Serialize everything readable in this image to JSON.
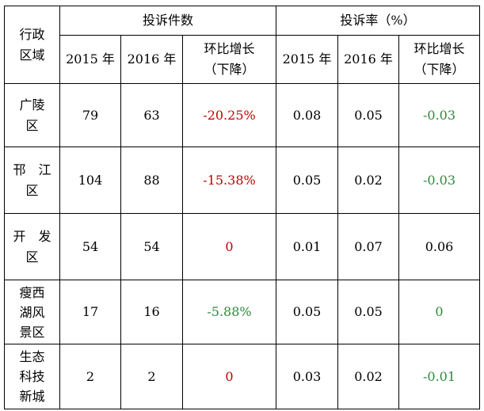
{
  "header": {
    "region_lines": [
      "行政",
      "区域"
    ],
    "complaints_group": "投诉件数",
    "rate_group": "投诉率（%）",
    "sub": {
      "y2015": "2015 年",
      "y2016": "2016 年",
      "change_lines": [
        "环比增长",
        "（下降）"
      ]
    }
  },
  "rows": [
    {
      "region_lines": [
        "广陵",
        "区"
      ],
      "count_2015": "79",
      "count_2016": "63",
      "count_change": "-20.25%",
      "rate_2015": "0.08",
      "rate_2016": "0.05",
      "rate_change": "-0.03"
    },
    {
      "region_lines": [
        "邗　江",
        "区"
      ],
      "count_2015": "104",
      "count_2016": "88",
      "count_change": "-15.38%",
      "rate_2015": "0.05",
      "rate_2016": "0.02",
      "rate_change": "-0.03"
    },
    {
      "region_lines": [
        "开　发",
        "区"
      ],
      "count_2015": "54",
      "count_2016": "54",
      "count_change": "0",
      "rate_2015": "0.01",
      "rate_2016": "0.07",
      "rate_change": "0.06"
    },
    {
      "region_lines": [
        "瘦西",
        "湖风",
        "景区"
      ],
      "count_2015": "17",
      "count_2016": "16",
      "count_change": "-5.88%",
      "rate_2015": "0.05",
      "rate_2016": "0.05",
      "rate_change": "0"
    },
    {
      "region_lines": [
        "生态",
        "科技",
        "新城"
      ],
      "count_2015": "2",
      "count_2016": "2",
      "count_change": "0",
      "rate_2015": "0.03",
      "rate_2016": "0.02",
      "rate_change": "-0.01"
    }
  ],
  "colors": {
    "decrease_count": "#c00000",
    "zero_count": "#c00000",
    "green_value": "#2e8b3e",
    "text": "#000000"
  }
}
